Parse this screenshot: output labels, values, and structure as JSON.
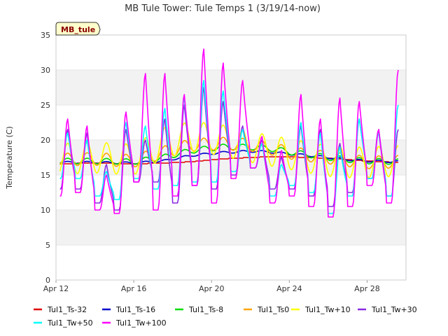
{
  "chart_data": {
    "type": "line",
    "title": "MB Tule Tower: Tule Temps 1 (3/19/14-now)",
    "site_label": "MB_tule",
    "xlabel": "",
    "ylabel": "Temperature (C)",
    "ylim": [
      0,
      35
    ],
    "yticks": [
      0,
      5,
      10,
      15,
      20,
      25,
      30,
      35
    ],
    "xlim": [
      12,
      30
    ],
    "xticks": [
      {
        "value": 12,
        "label": "Apr 12"
      },
      {
        "value": 16,
        "label": "Apr 16"
      },
      {
        "value": 20,
        "label": "Apr 20"
      },
      {
        "value": 24,
        "label": "Apr 24"
      },
      {
        "value": 28,
        "label": "Apr 28"
      }
    ],
    "grid": "alternating bands",
    "series": [
      {
        "name": "Tul1_Ts-32",
        "color": "#e00000",
        "mode": "steps",
        "x": [
          12.2,
          14,
          16,
          17.5,
          19,
          20.5,
          22,
          23,
          24,
          25,
          26,
          27,
          28,
          29.5
        ],
        "y": [
          16.6,
          16.7,
          16.6,
          16.7,
          16.9,
          17.3,
          17.5,
          17.6,
          17.6,
          17.5,
          17.4,
          17.2,
          17.0,
          16.8
        ]
      },
      {
        "name": "Tul1_Ts-16",
        "color": "#0000cc",
        "mode": "wave",
        "amp": 0.15,
        "x": [
          12.2,
          14,
          16,
          17.5,
          19,
          20.5,
          22,
          23,
          24,
          25,
          26,
          27,
          28,
          29.5
        ],
        "y": [
          16.8,
          16.8,
          16.7,
          17.0,
          17.8,
          18.2,
          18.4,
          18.3,
          18.0,
          17.8,
          17.5,
          17.2,
          17.0,
          16.9
        ]
      },
      {
        "name": "Tul1_Ts-8",
        "color": "#00dd00",
        "mode": "wave",
        "amp": 0.4,
        "x": [
          12.2,
          14,
          16,
          17.5,
          19,
          20.5,
          22,
          23,
          24,
          25,
          26,
          27,
          28,
          29.5
        ],
        "y": [
          17.0,
          17.0,
          16.9,
          17.5,
          18.5,
          19.0,
          19.0,
          18.8,
          18.3,
          17.9,
          17.5,
          17.2,
          17.0,
          16.9
        ]
      },
      {
        "name": "Tul1_Ts0",
        "color": "#ffa500",
        "mode": "wave",
        "amp": 0.9,
        "x": [
          12.2,
          14,
          16,
          17.5,
          19,
          20.5,
          22,
          23,
          24,
          25,
          26,
          27,
          28,
          29.5
        ],
        "y": [
          17.2,
          17.3,
          17.0,
          18.2,
          19.3,
          19.5,
          19.3,
          18.8,
          18.2,
          17.8,
          17.5,
          17.1,
          16.8,
          16.9
        ]
      },
      {
        "name": "Tul1_Tw+10",
        "color": "#ffff00",
        "mode": "wave",
        "amp": 2.2,
        "x": [
          12.2,
          14,
          16,
          17.5,
          19,
          20.5,
          22,
          23,
          24,
          25,
          26,
          27,
          28,
          29.5
        ],
        "y": [
          17.3,
          17.5,
          17.2,
          19.5,
          20.5,
          20.0,
          19.0,
          18.5,
          18.0,
          17.5,
          17.0,
          16.8,
          16.8,
          17.0
        ]
      },
      {
        "name": "Tul1_Tw+30",
        "color": "#8a2be2",
        "mode": "daily",
        "peaks": [
          21.5,
          21.0,
          16.5,
          21.5,
          20.0,
          23.0,
          25.0,
          27.5,
          25.5,
          22.0,
          20.0,
          17.5,
          22.0,
          21.5,
          19.5,
          23.0,
          21.5,
          21.5
        ],
        "mins": [
          13.0,
          13.0,
          11.0,
          10.0,
          14.0,
          14.0,
          11.0,
          13.5,
          13.0,
          15.0,
          16.0,
          13.0,
          13.0,
          12.0,
          10.5,
          12.5,
          14.5,
          12.0,
          14.0
        ]
      },
      {
        "name": "Tul1_Tw+50",
        "color": "#00ffff",
        "mode": "daily",
        "peaks": [
          21.0,
          20.0,
          15.5,
          22.5,
          22.0,
          24.5,
          26.0,
          28.5,
          27.0,
          21.5,
          19.5,
          16.5,
          22.5,
          21.0,
          19.0,
          23.0,
          21.0,
          25.0
        ],
        "mins": [
          14.5,
          14.5,
          12.0,
          11.5,
          14.5,
          13.0,
          13.5,
          14.0,
          14.0,
          15.5,
          16.0,
          12.0,
          13.5,
          12.5,
          9.5,
          12.0,
          14.5,
          12.0,
          15.0
        ]
      },
      {
        "name": "Tul1_Tw+100",
        "color": "#ff00ff",
        "mode": "daily",
        "peaks": [
          23.0,
          22.0,
          15.0,
          24.0,
          29.5,
          29.5,
          26.5,
          33.0,
          31.0,
          28.5,
          20.5,
          18.5,
          26.5,
          23.0,
          26.0,
          25.5,
          21.5,
          30.0
        ],
        "mins": [
          12.0,
          12.5,
          10.0,
          9.5,
          14.0,
          10.0,
          12.0,
          13.5,
          11.0,
          14.5,
          16.0,
          11.0,
          12.0,
          10.5,
          9.0,
          10.5,
          13.5,
          11.0,
          14.0
        ]
      }
    ]
  }
}
